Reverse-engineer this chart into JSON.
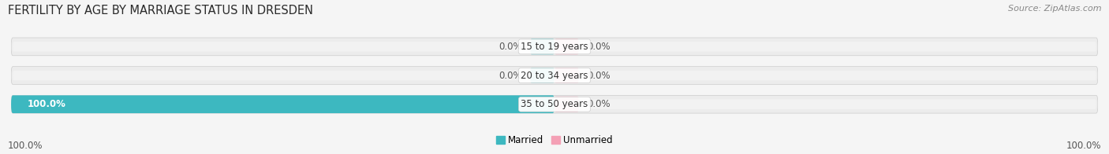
{
  "title": "FERTILITY BY AGE BY MARRIAGE STATUS IN DRESDEN",
  "source": "Source: ZipAtlas.com",
  "categories": [
    "15 to 19 years",
    "20 to 34 years",
    "35 to 50 years"
  ],
  "married_pct": [
    0.0,
    0.0,
    100.0
  ],
  "unmarried_pct": [
    0.0,
    0.0,
    0.0
  ],
  "married_color": "#3db8c0",
  "unmarried_color": "#f4a0b5",
  "bar_bg_color": "#e8e8e8",
  "bar_bg_top": "#f0f0f0",
  "bar_bg_bottom": "#d8d8d8",
  "title_fontsize": 10.5,
  "source_fontsize": 8,
  "tick_fontsize": 8.5,
  "legend_fontsize": 8.5,
  "married_label": "Married",
  "unmarried_label": "Unmarried",
  "background_color": "#f5f5f5",
  "bottom_left_label": "100.0%",
  "bottom_right_label": "100.0%",
  "nub_size": 4.5
}
